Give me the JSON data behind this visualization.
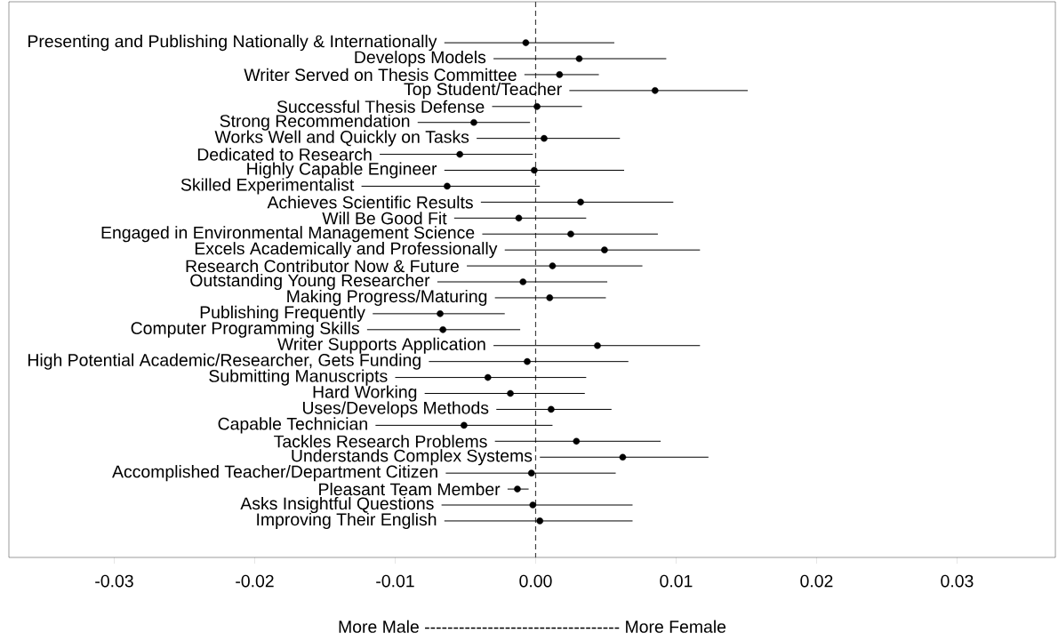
{
  "chart_data": {
    "type": "scatter",
    "orientation": "horizontal",
    "categories": [
      "Presenting and Publishing Nationally & Internationally",
      "Develops Models",
      "Writer Served on Thesis Committee",
      "Top Student/Teacher",
      "Successful Thesis Defense",
      "Strong Recommendation",
      "Works Well and Quickly on Tasks",
      "Dedicated to Research",
      "Highly Capable Engineer",
      "Skilled Experimentalist",
      "Achieves Scientific Results",
      "Will Be Good Fit",
      "Engaged in Environmental Management Science",
      "Excels Academically and Professionally",
      "Research Contributor Now & Future",
      "Outstanding Young Researcher",
      "Making Progress/Maturing",
      "Publishing Frequently",
      "Computer Programming Skills",
      "Writer Supports Application",
      "High Potential Academic/Researcher, Gets Funding",
      "Submitting Manuscripts",
      "Hard Working",
      "Uses/Develops Methods",
      "Capable Technician",
      "Tackles Research Problems",
      "Understands Complex Systems",
      "Accomplished Teacher/Department Citizen",
      "Pleasant Team Member",
      "Asks Insightful Questions",
      "Improving Their English"
    ],
    "values": [
      -0.0007,
      0.0031,
      0.0017,
      0.0085,
      0.0001,
      -0.0044,
      0.0006,
      -0.0054,
      -0.0001,
      -0.0063,
      0.0032,
      -0.0012,
      0.0025,
      0.0049,
      0.0012,
      -0.0009,
      0.001,
      -0.0068,
      -0.0066,
      0.0044,
      -0.0006,
      -0.0034,
      -0.0018,
      0.0011,
      -0.0051,
      0.0029,
      0.0062,
      -0.0003,
      -0.0013,
      -0.0002,
      0.0003
    ],
    "errors": [
      [
        -0.0065,
        0.0056
      ],
      [
        -0.003,
        0.0093
      ],
      [
        -0.0008,
        0.0045
      ],
      [
        0.0024,
        0.0151
      ],
      [
        -0.0031,
        0.0033
      ],
      [
        -0.0084,
        -0.0004
      ],
      [
        -0.0042,
        0.006
      ],
      [
        -0.0111,
        -0.0002
      ],
      [
        -0.0065,
        0.0063
      ],
      [
        -0.0124,
        0.0003
      ],
      [
        -0.0039,
        0.0098
      ],
      [
        -0.0058,
        0.0036
      ],
      [
        -0.0038,
        0.0087
      ],
      [
        -0.0022,
        0.0117
      ],
      [
        -0.0049,
        0.0076
      ],
      [
        -0.007,
        0.0051
      ],
      [
        -0.0029,
        0.005
      ],
      [
        -0.0116,
        -0.0022
      ],
      [
        -0.012,
        -0.0011
      ],
      [
        -0.003,
        0.0117
      ],
      [
        -0.0076,
        0.0066
      ],
      [
        -0.01,
        0.0036
      ],
      [
        -0.0079,
        0.0035
      ],
      [
        -0.0028,
        0.0054
      ],
      [
        -0.0114,
        0.0012
      ],
      [
        -0.0029,
        0.0089
      ],
      [
        0.0003,
        0.0123
      ],
      [
        -0.0064,
        0.0057
      ],
      [
        -0.002,
        -0.0005
      ],
      [
        -0.0067,
        0.0069
      ],
      [
        -0.0065,
        0.0069
      ]
    ],
    "color": "#000000",
    "xlim": [
      -0.0375,
      0.037
    ],
    "xticks": [
      {
        "value": -0.03,
        "label": "-0.03"
      },
      {
        "value": -0.02,
        "label": "-0.02"
      },
      {
        "value": -0.01,
        "label": "-0.01"
      },
      {
        "value": 0,
        "label": "0.00"
      },
      {
        "value": 0.01,
        "label": "0.01"
      },
      {
        "value": 0.02,
        "label": "0.02"
      },
      {
        "value": 0.03,
        "label": "0.03"
      }
    ],
    "xlabel": "More Male ---------------------------------- More Female",
    "ref_lines": [
      {
        "axis": "x",
        "value": 0,
        "line_style": "dashed",
        "color": "#404040"
      }
    ],
    "tick_labels": "x"
  }
}
